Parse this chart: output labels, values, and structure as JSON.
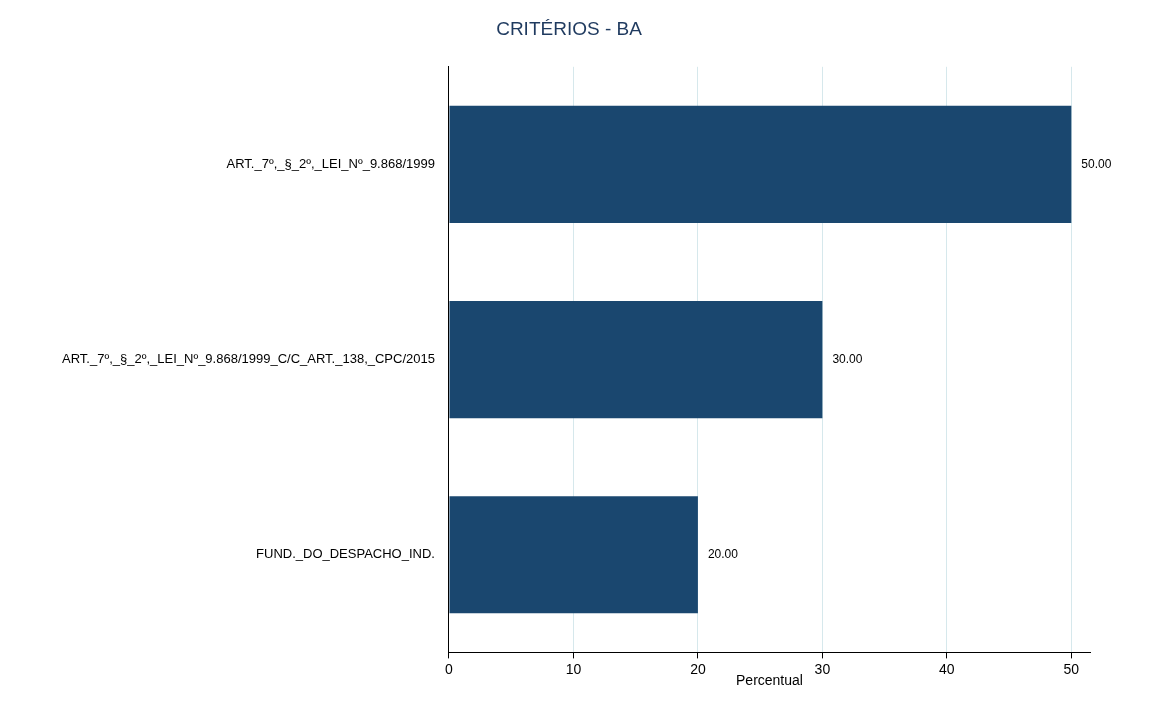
{
  "chart_data": {
    "type": "bar",
    "orientation": "horizontal",
    "title": "CRITÉRIOS - BA",
    "xlabel": "Percentual",
    "categories": [
      "ART._7º,_§_2º,_LEI_Nº_9.868/1999",
      "ART._7º,_§_2º,_LEI_Nº_9.868/1999_C/C_ART._138,_CPC/2015",
      "FUND._DO_DESPACHO_IND."
    ],
    "values": [
      50,
      30,
      20
    ],
    "value_labels": [
      "50.00",
      "30.00",
      "20.00"
    ],
    "color": "#1a476f",
    "xlim": [
      0,
      51.5
    ],
    "xticks": [
      0,
      10,
      20,
      30,
      40,
      50
    ],
    "grid": "x",
    "legend": false
  }
}
